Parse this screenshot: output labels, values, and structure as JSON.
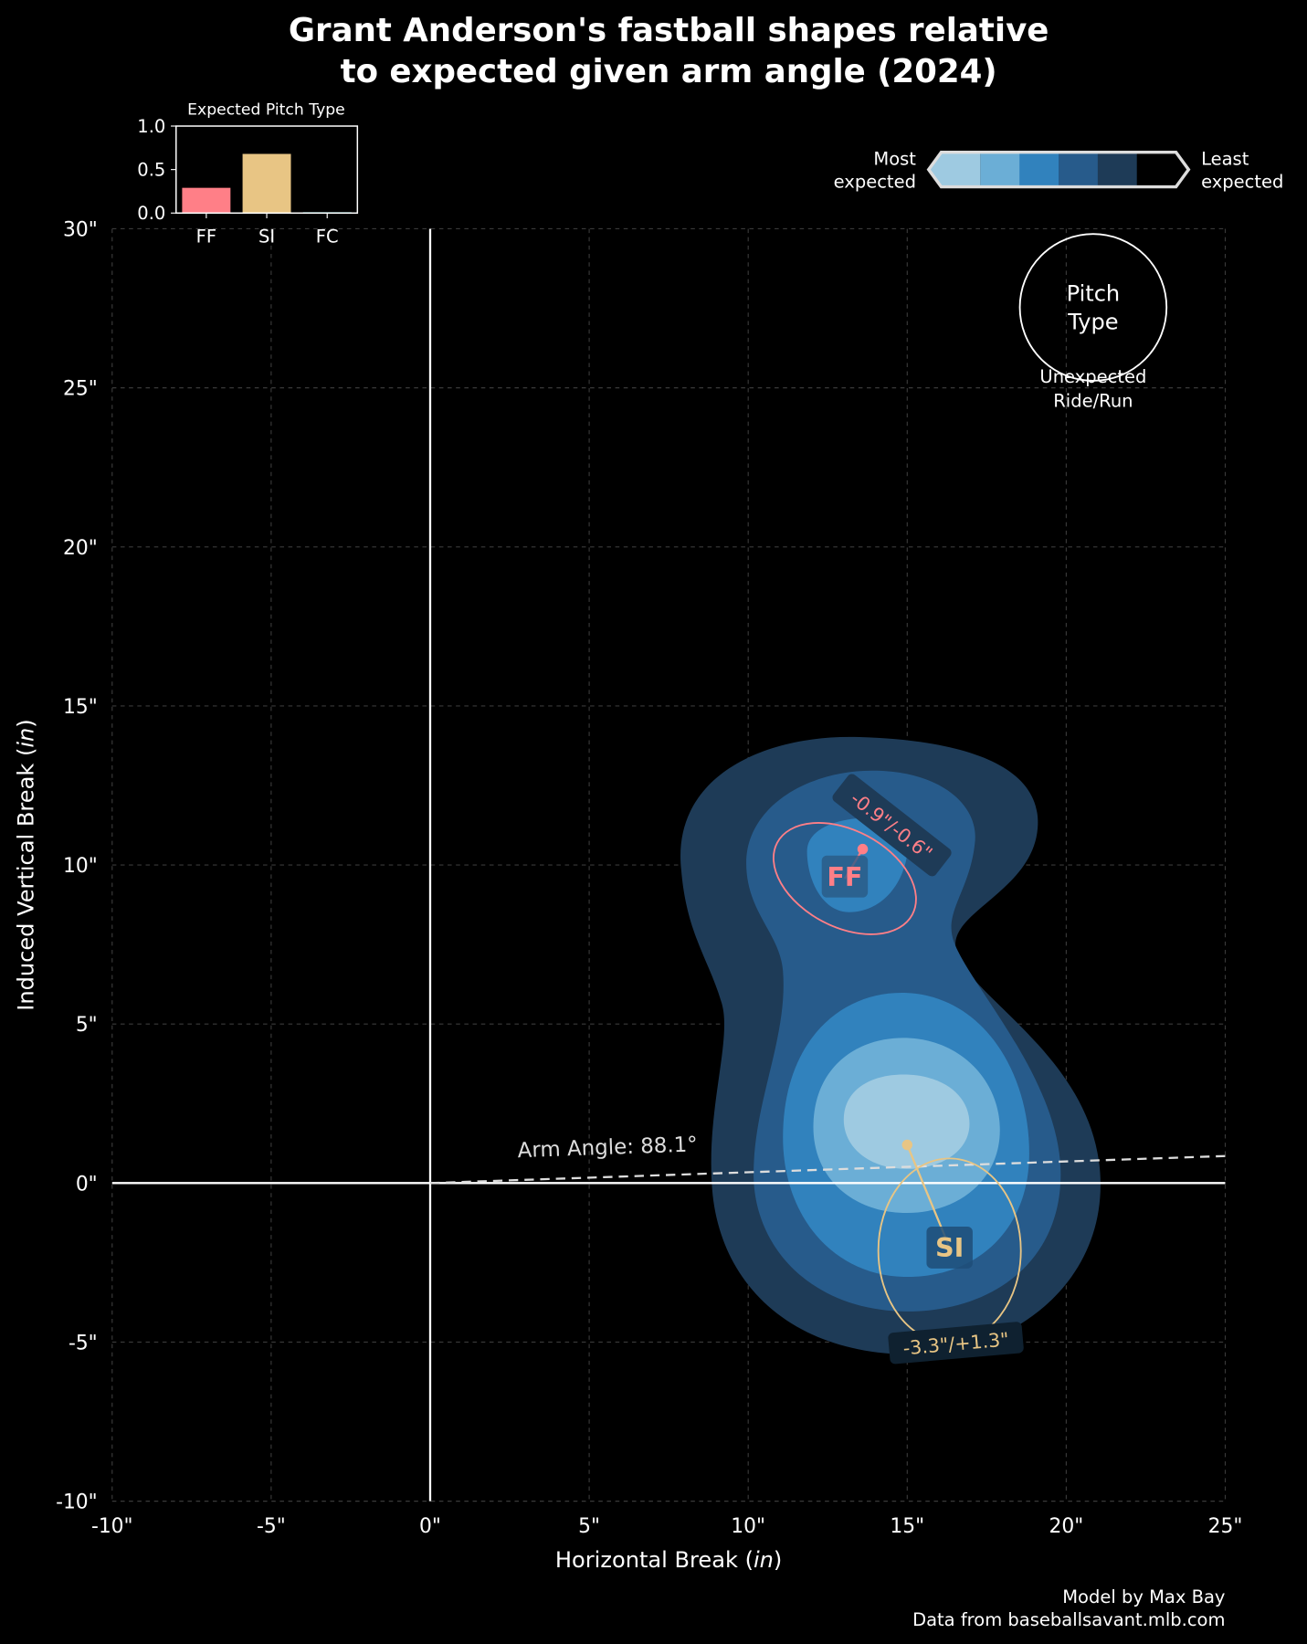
{
  "chart_data": {
    "type": "contour-scatter",
    "title": "Grant Anderson's fastball shapes relative\nto expected given arm angle (2024)",
    "title_lines": [
      "Grant Anderson's fastball shapes relative",
      "to expected given arm angle (2024)"
    ],
    "xlabel": "Horizontal Break (in)",
    "xlabel_main": "Horizontal Break (",
    "xlabel_unit": "in",
    "xlabel_close": ")",
    "ylabel_main": "Induced Vertical Break (",
    "ylabel_unit": "in",
    "ylabel_close": ")",
    "xlim": [
      -10,
      25
    ],
    "ylim": [
      -10,
      30
    ],
    "xticks": [
      -10,
      -5,
      0,
      5,
      10,
      15,
      20,
      25
    ],
    "xtick_labels": [
      "-10\"",
      "-5\"",
      "0\"",
      "5\"",
      "10\"",
      "15\"",
      "20\"",
      "25\""
    ],
    "yticks": [
      -10,
      -5,
      0,
      5,
      10,
      15,
      20,
      25,
      30
    ],
    "ytick_labels": [
      "-10\"",
      "-5\"",
      "0\"",
      "5\"",
      "10\"",
      "15\"",
      "20\"",
      "25\"",
      "30\""
    ],
    "grid": true,
    "arm_angle": {
      "label": "Arm Angle: 88.1°",
      "degrees": 88.1,
      "end": [
        25,
        0.85
      ]
    },
    "pitches": [
      {
        "type": "FF",
        "color": "#ff7f87",
        "actual": [
          13.6,
          10.5
        ],
        "expected_center": [
          13.0,
          9.6
        ],
        "label": "FF",
        "diff_label": "-0.9\"/-0.6\""
      },
      {
        "type": "SI",
        "color": "#e8c584",
        "actual": [
          15.0,
          1.2
        ],
        "expected_center": [
          16.3,
          -2.1
        ],
        "label": "SI",
        "diff_label": "-3.3\"/+1.3\""
      }
    ],
    "contour_colors": [
      "#9ecae1",
      "#6baed6",
      "#3182bd",
      "#275b8b",
      "#1e3b57",
      "#000000"
    ],
    "colorbar": {
      "left_label_1": "Most",
      "left_label_2": "expected",
      "right_label_1": "Least",
      "right_label_2": "expected"
    },
    "key": {
      "circle_text_1": "Pitch",
      "circle_text_2": "Type",
      "below_1": "Unexpected",
      "below_2": "Ride/Run"
    },
    "inset": {
      "title": "Expected Pitch Type",
      "type": "bar",
      "categories": [
        "FF",
        "SI",
        "FC"
      ],
      "values": [
        0.29,
        0.68,
        0.01
      ],
      "colors": [
        "#ff7f87",
        "#e8c584",
        "#5bc8c8"
      ],
      "ylim": [
        0,
        1.0
      ],
      "yticks": [
        0.0,
        0.5,
        1.0
      ],
      "ytick_labels": [
        "0.0",
        "0.5",
        "1.0"
      ]
    },
    "credits": [
      "Model by Max Bay",
      "Data from baseballsavant.mlb.com"
    ]
  }
}
